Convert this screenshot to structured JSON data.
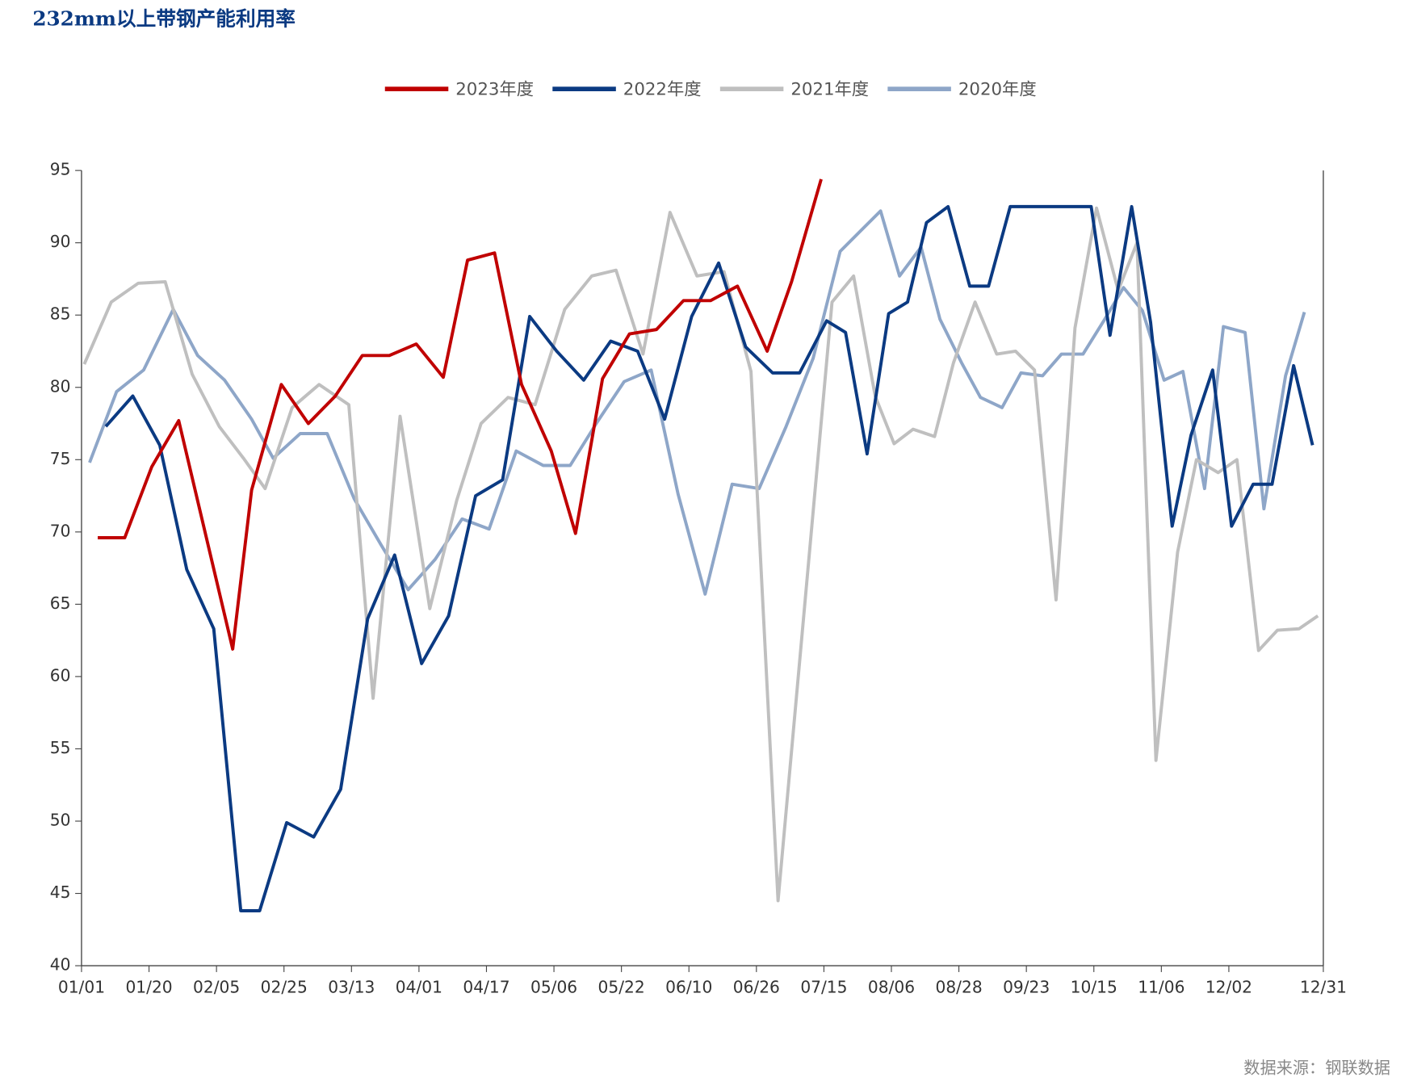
{
  "chart_data": {
    "type": "line",
    "title": "232mm以上带钢产能利用率",
    "source": "数据来源：钢联数据",
    "xlim": [
      0,
      46
    ],
    "xticks": [
      {
        "value": 0,
        "label": "01/01"
      },
      {
        "value": 2.5,
        "label": "01/20"
      },
      {
        "value": 5,
        "label": "02/05"
      },
      {
        "value": 7.5,
        "label": "02/25"
      },
      {
        "value": 10,
        "label": "03/13"
      },
      {
        "value": 12.5,
        "label": "04/01"
      },
      {
        "value": 15,
        "label": "04/17"
      },
      {
        "value": 17.5,
        "label": "05/06"
      },
      {
        "value": 20,
        "label": "05/22"
      },
      {
        "value": 22.5,
        "label": "06/10"
      },
      {
        "value": 25,
        "label": "06/26"
      },
      {
        "value": 27.5,
        "label": "07/15"
      },
      {
        "value": 30,
        "label": "08/06"
      },
      {
        "value": 32.5,
        "label": "08/28"
      },
      {
        "value": 35,
        "label": "09/23"
      },
      {
        "value": 37.5,
        "label": "10/15"
      },
      {
        "value": 40,
        "label": "11/06"
      },
      {
        "value": 42.5,
        "label": "12/02"
      },
      {
        "value": 46,
        "label": "12/31"
      }
    ],
    "ylim": [
      40,
      95
    ],
    "yticks": [
      40,
      45,
      50,
      55,
      60,
      65,
      70,
      75,
      80,
      85,
      90,
      95
    ],
    "series": [
      {
        "name": "2023年度",
        "color": "#c00000",
        "x": [
          0.6,
          1.6,
          2.6,
          3.6,
          4.6,
          5.6,
          6.3,
          7.4,
          8.4,
          9.4,
          10.4,
          11.4,
          12.4,
          13.4,
          14.3,
          15.3,
          16.3,
          17.4,
          18.3,
          19.3,
          20.3,
          21.3,
          22.3,
          23.3,
          24.3,
          25.4,
          26.3,
          27.4
        ],
        "values": [
          69.6,
          69.6,
          74.5,
          77.7,
          69.8,
          61.9,
          72.9,
          80.2,
          77.5,
          79.4,
          82.2,
          82.2,
          83.0,
          80.7,
          88.8,
          89.3,
          80.2,
          75.6,
          69.9,
          80.6,
          83.7,
          84.0,
          86.0,
          86.0,
          87.0,
          82.5,
          87.3,
          94.4
        ]
      },
      {
        "name": "2022年度",
        "color": "#0b3a82",
        "x": [
          0.9,
          1.9,
          2.9,
          3.9,
          4.9,
          5.9,
          6.6,
          7.6,
          8.6,
          9.6,
          10.6,
          11.6,
          12.6,
          13.6,
          14.6,
          15.6,
          16.6,
          17.6,
          18.6,
          19.6,
          20.6,
          21.6,
          22.6,
          23.6,
          24.6,
          25.6,
          26.6,
          27.6,
          28.3,
          29.1,
          29.9,
          30.6,
          31.3,
          32.1,
          32.9,
          33.6,
          34.4,
          35.1,
          35.9,
          36.6,
          37.4,
          38.1,
          38.9,
          39.6,
          40.4,
          41.1,
          41.9,
          42.6,
          43.4,
          44.1,
          44.9,
          45.6
        ],
        "values": [
          77.3,
          79.4,
          76.0,
          67.4,
          63.3,
          43.8,
          43.8,
          49.9,
          48.9,
          52.2,
          64.0,
          68.4,
          60.9,
          64.2,
          72.5,
          73.6,
          84.9,
          82.5,
          80.5,
          83.2,
          82.5,
          77.8,
          84.9,
          88.6,
          82.8,
          81.0,
          81.0,
          84.6,
          83.8,
          75.4,
          85.1,
          85.9,
          91.4,
          92.5,
          87.0,
          87.0,
          92.5,
          92.5,
          92.5,
          92.5,
          92.5,
          83.6,
          92.5,
          84.5,
          70.4,
          76.7,
          81.2,
          70.4,
          73.3,
          73.3,
          81.5,
          76.0
        ]
      },
      {
        "name": "2021年度",
        "color": "#bfbfbf",
        "x": [
          0.1,
          1.1,
          2.1,
          3.1,
          4.1,
          5.1,
          6.0,
          6.8,
          7.8,
          8.8,
          9.9,
          10.8,
          11.8,
          12.9,
          13.9,
          14.8,
          15.8,
          16.8,
          17.9,
          18.9,
          19.8,
          20.8,
          21.8,
          22.8,
          23.8,
          24.8,
          25.8,
          27.8,
          28.6,
          29.4,
          30.1,
          30.8,
          31.6,
          32.3,
          33.1,
          33.9,
          34.6,
          35.3,
          36.1,
          36.8,
          37.6,
          38.4,
          39.1,
          39.8,
          40.6,
          41.3,
          42.1,
          42.8,
          43.6,
          44.3,
          45.1,
          45.8
        ],
        "values": [
          81.6,
          85.9,
          87.2,
          87.3,
          80.9,
          77.3,
          75.1,
          73.0,
          78.6,
          80.2,
          78.8,
          58.5,
          78.0,
          64.7,
          72.2,
          77.5,
          79.3,
          78.8,
          85.4,
          87.7,
          88.1,
          82.3,
          92.1,
          87.7,
          88.0,
          81.1,
          44.5,
          85.9,
          87.7,
          79.4,
          76.1,
          77.1,
          76.6,
          81.7,
          85.9,
          82.3,
          82.5,
          81.2,
          65.3,
          84.1,
          92.4,
          86.7,
          90.0,
          54.2,
          68.6,
          75.0,
          74.1,
          75.0,
          61.8,
          63.2,
          63.3,
          64.2
        ]
      },
      {
        "name": "2020年度",
        "color": "#8ea6c8",
        "x": [
          0.3,
          1.3,
          2.3,
          3.4,
          4.3,
          5.3,
          6.3,
          7.1,
          8.1,
          9.1,
          10.1,
          11.1,
          12.1,
          13.1,
          14.1,
          15.1,
          16.1,
          17.1,
          18.1,
          19.1,
          20.1,
          21.1,
          22.1,
          23.1,
          24.1,
          25.1,
          26.1,
          27.1,
          28.1,
          28.9,
          29.6,
          30.3,
          31.1,
          31.8,
          32.6,
          33.3,
          34.1,
          34.8,
          35.6,
          36.3,
          37.1,
          37.9,
          38.6,
          39.3,
          40.1,
          40.8,
          41.6,
          42.3,
          43.1,
          43.8,
          44.6,
          45.3
        ],
        "values": [
          74.8,
          79.7,
          81.2,
          85.4,
          82.2,
          80.5,
          77.8,
          75.1,
          76.8,
          76.8,
          72.3,
          69.1,
          66.0,
          68.1,
          70.9,
          70.2,
          75.6,
          74.6,
          74.6,
          77.6,
          80.4,
          81.2,
          72.6,
          65.7,
          73.3,
          73.0,
          77.3,
          82.0,
          89.4,
          90.9,
          92.2,
          87.7,
          89.7,
          84.7,
          81.7,
          79.3,
          78.6,
          81.0,
          80.8,
          82.3,
          82.3,
          84.7,
          86.9,
          85.3,
          80.5,
          81.1,
          73.0,
          84.2,
          83.8,
          71.6,
          80.8,
          85.2
        ]
      }
    ]
  }
}
